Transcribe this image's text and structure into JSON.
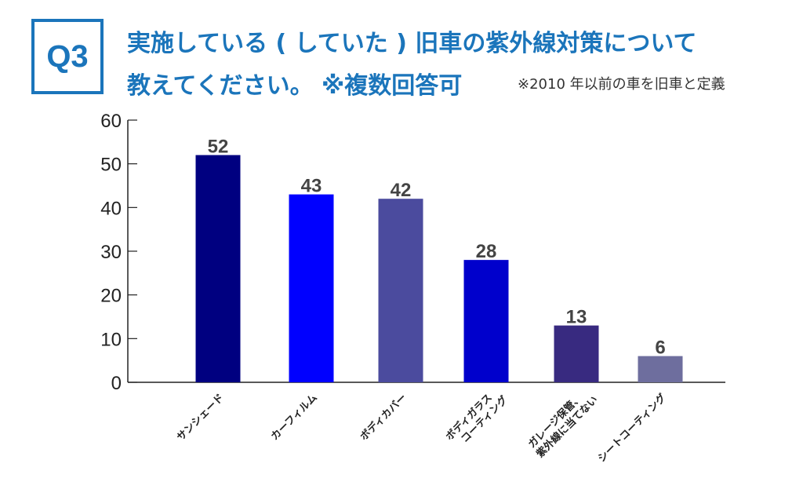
{
  "badge": "Q3",
  "title_line1": "実施している ( していた ) 旧車の紫外線対策について",
  "title_line2": "教えてください。 ※複数回答可",
  "note": "※2010 年以前の車を旧車と定義",
  "chart_data": {
    "type": "bar",
    "title": "実施している ( していた ) 旧車の紫外線対策について教えてください。 ※複数回答可",
    "categories": [
      "サンシェード",
      "カーフィルム",
      "ボディカバー",
      "ボディガラス\nコーティング",
      "ガレージ保管、\n紫外線に当てない",
      "シートコーティング"
    ],
    "values": [
      52,
      43,
      42,
      28,
      13,
      6
    ],
    "colors": [
      "#000080",
      "#0000ff",
      "#4b4b9e",
      "#0000cc",
      "#382a80",
      "#6e6e9e"
    ],
    "ylim": [
      0,
      60
    ],
    "yticks": [
      0,
      10,
      20,
      30,
      40,
      50,
      60
    ],
    "xlabel": "",
    "ylabel": "",
    "grid": false
  }
}
